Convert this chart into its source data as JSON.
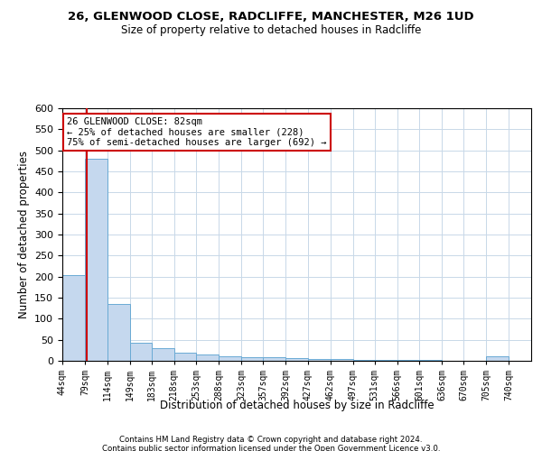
{
  "title1": "26, GLENWOOD CLOSE, RADCLIFFE, MANCHESTER, M26 1UD",
  "title2": "Size of property relative to detached houses in Radcliffe",
  "xlabel": "Distribution of detached houses by size in Radcliffe",
  "ylabel": "Number of detached properties",
  "bin_edges": [
    44,
    79,
    114,
    149,
    183,
    218,
    253,
    288,
    323,
    357,
    392,
    427,
    462,
    497,
    531,
    566,
    601,
    636,
    670,
    705,
    740
  ],
  "bar_heights": [
    204,
    480,
    135,
    43,
    30,
    20,
    15,
    10,
    8,
    8,
    6,
    5,
    5,
    3,
    3,
    3,
    2,
    1,
    1,
    10
  ],
  "bar_color": "#c5d8ee",
  "bar_edgecolor": "#6aaad4",
  "property_size": 82,
  "vline_color": "#cc0000",
  "annotation_text": "26 GLENWOOD CLOSE: 82sqm\n← 25% of detached houses are smaller (228)\n75% of semi-detached houses are larger (692) →",
  "annotation_box_color": "#ffffff",
  "annotation_box_edgecolor": "#cc0000",
  "ylim": [
    0,
    600
  ],
  "yticks": [
    0,
    50,
    100,
    150,
    200,
    250,
    300,
    350,
    400,
    450,
    500,
    550,
    600
  ],
  "footer1": "Contains HM Land Registry data © Crown copyright and database right 2024.",
  "footer2": "Contains public sector information licensed under the Open Government Licence v3.0.",
  "background_color": "#ffffff",
  "grid_color": "#c8d8e8"
}
